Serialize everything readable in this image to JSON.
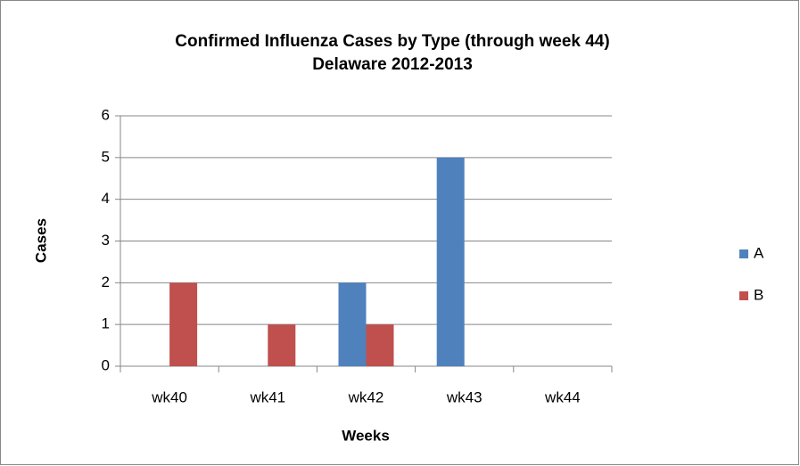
{
  "chart_data": {
    "type": "bar",
    "title": "Confirmed Influenza Cases by Type (through week 44)",
    "subtitle": "Delaware 2012-2013",
    "x_label": "Weeks",
    "y_label": "Cases",
    "categories": [
      "wk40",
      "wk41",
      "wk42",
      "wk43",
      "wk44"
    ],
    "series": [
      {
        "name": "A",
        "color": "#4f81bd",
        "values": [
          0,
          0,
          2,
          5,
          0
        ]
      },
      {
        "name": "B",
        "color": "#c0504d",
        "values": [
          2,
          1,
          1,
          0,
          0
        ]
      }
    ],
    "ylim": [
      0,
      6
    ],
    "yticks": [
      0,
      1,
      2,
      3,
      4,
      5,
      6
    ],
    "grid": true,
    "legend": "right"
  }
}
